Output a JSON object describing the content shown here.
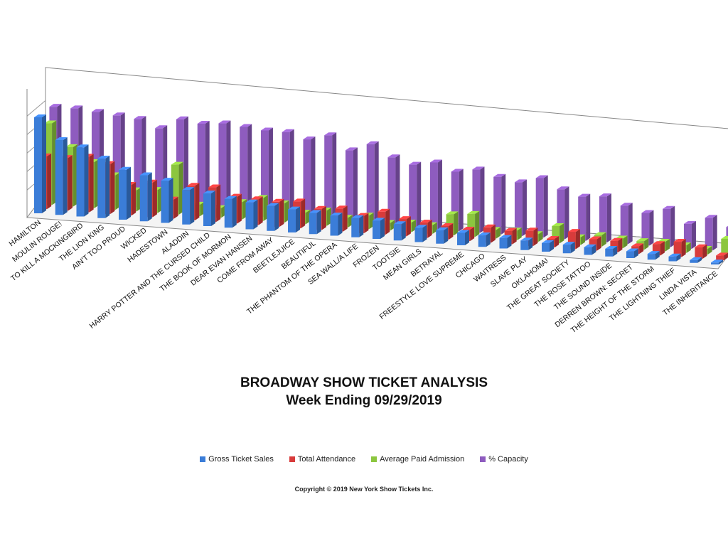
{
  "chart_data": {
    "type": "bar",
    "title": "BROADWAY SHOW TICKET ANALYSIS",
    "subtitle": "Week Ending 09/29/2019",
    "categories": [
      "HAMILTON",
      "MOULIN ROUGE!",
      "TO KILL A MOCKINGBIRD",
      "THE LION KING",
      "AIN'T TOO PROUD",
      "WICKED",
      "HADESTOWN",
      "ALADDIN",
      "HARRY POTTER AND THE CURSED CHILD",
      "THE BOOK OF MORMON",
      "DEAR EVAN HANSEN",
      "COME FROM AWAY",
      "BEETLEJUICE",
      "BEAUTIFUL",
      "THE PHANTOM OF THE OPERA",
      "SEA WALL/A LIFE",
      "FROZEN",
      "TOOTSIE",
      "MEAN GIRLS",
      "BETRAYAL",
      "FREESTYLE LOVE SUPREME",
      "CHICAGO",
      "WAITRESS",
      "SLAVE PLAY",
      "OKLAHOMA!",
      "THE GREAT SOCIETY",
      "THE ROSE TATTOO",
      "THE SOUND INSIDE",
      "DERREN BROWN: SECRET",
      "THE HEIGHT OF THE STORM",
      "THE LIGHTNING THIEF",
      "LINDA VISTA",
      "THE INHERITANCE"
    ],
    "series": [
      {
        "name": "Gross Ticket Sales",
        "color": "#3b7dd8",
        "values": [
          100,
          78,
          72,
          62,
          52,
          48,
          44,
          36,
          34,
          30,
          28,
          26,
          24,
          22,
          21,
          20,
          19,
          17,
          15,
          14,
          13,
          12,
          11,
          10,
          9,
          9,
          8,
          8,
          7,
          6,
          5,
          3,
          2
        ]
      },
      {
        "name": "Total Attendance",
        "color": "#d83b3b",
        "values": [
          55,
          55,
          58,
          52,
          32,
          36,
          20,
          36,
          36,
          28,
          27,
          26,
          28,
          22,
          24,
          18,
          24,
          18,
          16,
          14,
          12,
          16,
          14,
          16,
          9,
          18,
          12,
          12,
          8,
          12,
          16,
          12,
          5
        ]
      },
      {
        "name": "Average Paid Admission",
        "color": "#8cc63f",
        "values": [
          85,
          62,
          48,
          36,
          22,
          24,
          52,
          12,
          10,
          18,
          24,
          20,
          12,
          16,
          10,
          14,
          8,
          10,
          9,
          22,
          24,
          9,
          10,
          8,
          18,
          8,
          12,
          10,
          9,
          10,
          8,
          6,
          18
        ]
      },
      {
        "name": "% Capacity",
        "color": "#8e5cbf",
        "values": [
          98,
          98,
          96,
          94,
          92,
          84,
          95,
          92,
          94,
          92,
          90,
          90,
          84,
          90,
          76,
          84,
          72,
          66,
          70,
          62,
          66,
          60,
          56,
          62,
          52,
          46,
          48,
          40,
          34,
          40,
          26,
          34,
          26
        ]
      }
    ]
  },
  "legend": {
    "items": [
      {
        "label": "Gross Ticket Sales",
        "color": "#3b7dd8"
      },
      {
        "label": "Total Attendance",
        "color": "#d83b3b"
      },
      {
        "label": "Average Paid Admission",
        "color": "#8cc63f"
      },
      {
        "label": "% Capacity",
        "color": "#8e5cbf"
      }
    ]
  },
  "copyright": "Copyright © 2019 New York Show Tickets Inc."
}
